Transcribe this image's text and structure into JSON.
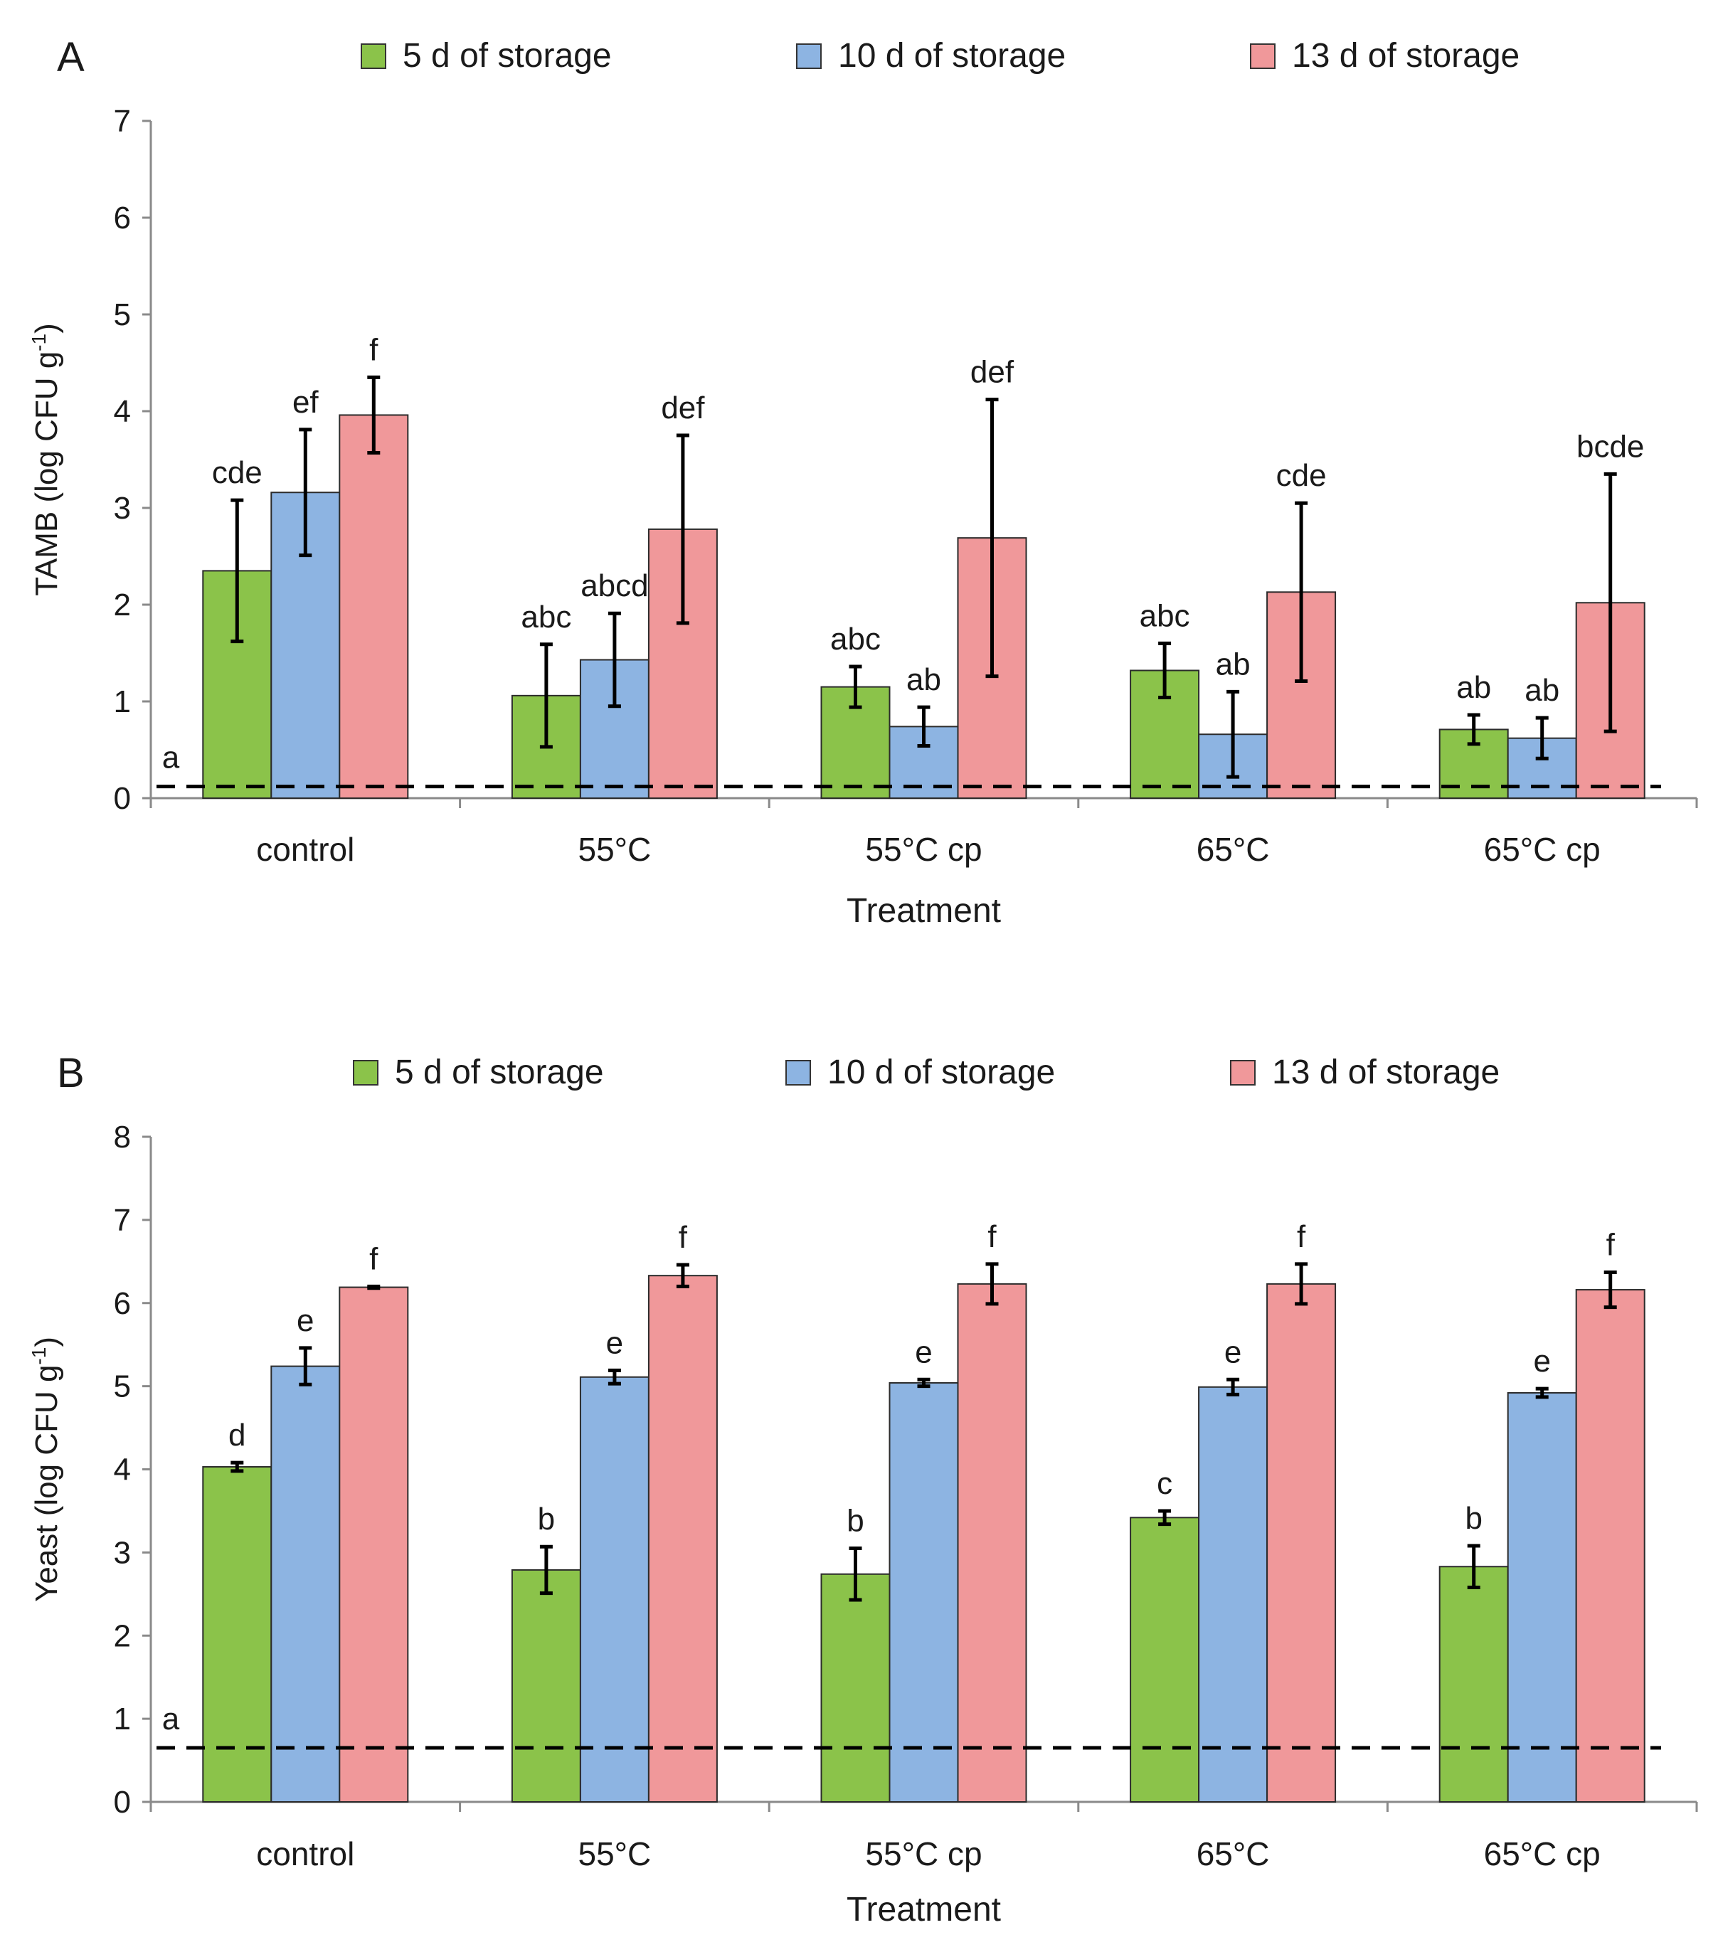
{
  "chart_data": [
    {
      "type": "bar",
      "panel_label": "A",
      "title": "",
      "xlabel": "Treatment",
      "ylabel": "TAMB (log CFU g",
      "ylabel_sup": "-1",
      "ylabel_end": ")",
      "ylim": [
        0,
        7
      ],
      "yticks": [
        "0",
        "1",
        "2",
        "3",
        "4",
        "5",
        "6",
        "7"
      ],
      "categories": [
        "control",
        "55°C",
        "55°C cp",
        "65°C",
        "65°C cp"
      ],
      "legend_position": "top",
      "series": [
        {
          "name": "5 d of storage",
          "color": "#8bc34a",
          "values": [
            2.35,
            1.06,
            1.15,
            1.32,
            0.71
          ],
          "errors": [
            0.73,
            0.53,
            0.21,
            0.28,
            0.15
          ],
          "letters": [
            "cde",
            "abc",
            "abc",
            "abc",
            "ab"
          ]
        },
        {
          "name": "10 d of storage",
          "color": "#8db4e2",
          "values": [
            3.16,
            1.43,
            0.74,
            0.66,
            0.62
          ],
          "errors": [
            0.65,
            0.48,
            0.2,
            0.44,
            0.21
          ],
          "letters": [
            "ef",
            "abcd",
            "ab",
            "ab",
            "ab"
          ]
        },
        {
          "name": "13 d of storage",
          "color": "#f0989a",
          "values": [
            3.96,
            2.78,
            2.69,
            2.13,
            2.02
          ],
          "errors": [
            0.39,
            0.97,
            1.43,
            0.92,
            1.33
          ],
          "letters": [
            "f",
            "def",
            "def",
            "cde",
            "bcde"
          ]
        }
      ],
      "detection_limit": {
        "value": 0.12,
        "label": "a"
      }
    },
    {
      "type": "bar",
      "panel_label": "B",
      "title": "",
      "xlabel": "Treatment",
      "ylabel": "Yeast (log CFU g",
      "ylabel_sup": "-1",
      "ylabel_end": ")",
      "ylim": [
        0,
        8
      ],
      "yticks": [
        "0",
        "1",
        "2",
        "3",
        "4",
        "5",
        "6",
        "7",
        "8"
      ],
      "categories": [
        "control",
        "55°C",
        "55°C cp",
        "65°C",
        "65°C cp"
      ],
      "legend_position": "top",
      "series": [
        {
          "name": "5 d of storage",
          "color": "#8bc34a",
          "values": [
            4.03,
            2.79,
            2.74,
            3.42,
            2.83
          ],
          "errors": [
            0.05,
            0.28,
            0.31,
            0.08,
            0.25
          ],
          "letters": [
            "d",
            "b",
            "b",
            "c",
            "b"
          ]
        },
        {
          "name": "10 d of storage",
          "color": "#8db4e2",
          "values": [
            5.24,
            5.11,
            5.04,
            4.99,
            4.92
          ],
          "errors": [
            0.22,
            0.08,
            0.04,
            0.09,
            0.05
          ],
          "letters": [
            "e",
            "e",
            "e",
            "e",
            "e"
          ]
        },
        {
          "name": "13 d of storage",
          "color": "#f0989a",
          "values": [
            6.19,
            6.33,
            6.23,
            6.23,
            6.16
          ],
          "errors": [
            0.01,
            0.13,
            0.24,
            0.24,
            0.21
          ],
          "letters": [
            "f",
            "f",
            "f",
            "f",
            "f"
          ]
        }
      ],
      "detection_limit": {
        "value": 0.65,
        "label": "a"
      }
    }
  ]
}
